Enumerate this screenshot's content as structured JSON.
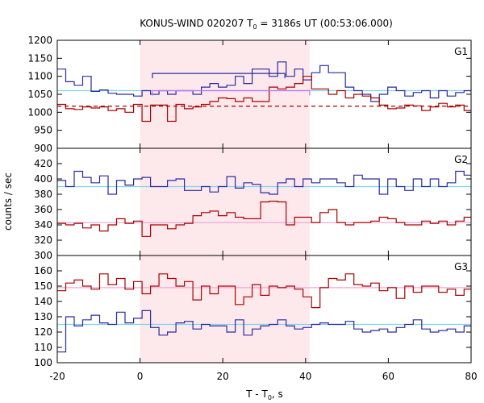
{
  "chart_data": {
    "type": "line",
    "title_parts": [
      "KONUS-WIND 020207 T",
      "0",
      " = 3186s UT (00:53:06.000)"
    ],
    "xlabel_parts": [
      "T - T",
      "0",
      ", s"
    ],
    "ylabel": "counts / sec",
    "xlim": [
      -20,
      80
    ],
    "xticks": [
      -20,
      0,
      20,
      40,
      60,
      80
    ],
    "highlight_region": [
      0,
      41
    ],
    "colors": {
      "red": "#aa0000",
      "blue": "#2a2aa0",
      "cyan": "#7fd3ee",
      "pink": "#f0a8d8",
      "violet": "#c070ff",
      "shade": "#fde8ec"
    },
    "panels": [
      {
        "label": "G1",
        "ylim": [
          900,
          1200
        ],
        "yticks": [
          900,
          950,
          1000,
          1050,
          1100,
          1150,
          1200
        ],
        "step": 2.048,
        "series": [
          {
            "color": "blue",
            "values": [
              1120,
              1085,
              1075,
              1100,
              1058,
              1062,
              1053,
              1050,
              1050,
              1045,
              1060,
              1050,
              1060,
              1050,
              1060,
              1060,
              1050,
              1070,
              1080,
              1070,
              1075,
              1100,
              1080,
              1120,
              1120,
              1100,
              1140,
              1100,
              1120,
              1090,
              1110,
              1130,
              1110,
              1110,
              1070,
              1060,
              1050,
              1030,
              1050,
              1070,
              1060,
              1045,
              1055,
              1060,
              1040,
              1060,
              1045,
              1055,
              1060,
              1050,
              1035,
              1060,
              1040,
              1050,
              1045,
              1060,
              1050,
              1040,
              1060,
              1050,
              1040,
              1050,
              1060,
              1040,
              1050,
              1060,
              1050,
              1040,
              1060,
              1050,
              1060,
              1040,
              1050,
              1060,
              1045,
              1065,
              1050,
              1060,
              1050
            ]
          },
          {
            "color": "red",
            "values": [
              1022,
              1010,
              1008,
              1015,
              1012,
              1015,
              1005,
              1010,
              1000,
              1022,
              975,
              1020,
              1020,
              975,
              1022,
              1010,
              1015,
              1022,
              1030,
              1040,
              1038,
              1030,
              1040,
              1030,
              1030,
              1070,
              1065,
              1070,
              1080,
              1100,
              1065,
              1065,
              1050,
              1060,
              1040,
              1050,
              1045,
              1040,
              1020,
              1010,
              1012,
              1020,
              1018,
              1005,
              1015,
              1025,
              1015,
              1020,
              1005,
              1015,
              1010,
              1000,
              1022,
              1010,
              1010,
              1015,
              1020,
              1005,
              1000,
              1020,
              1010,
              1012,
              1020,
              1015,
              1010,
              1015,
              1020,
              1010,
              1012,
              1018,
              1015,
              1010,
              1010,
              1015,
              1012,
              1015,
              1005,
              1012,
              1010
            ]
          }
        ],
        "hlines": [
          {
            "color": "cyan",
            "value": 1060
          },
          {
            "color": "red",
            "value": 1017,
            "dashed": true
          }
        ],
        "segments": [
          {
            "color": "blue",
            "x1": 3,
            "x2": 35,
            "value": 1108
          },
          {
            "color": "violet",
            "x1": 3,
            "x2": 41,
            "value": 1060
          }
        ]
      },
      {
        "label": "G2",
        "ylim": [
          300,
          440
        ],
        "yticks": [
          300,
          320,
          340,
          360,
          380,
          400,
          420
        ],
        "step": 2.048,
        "series": [
          {
            "color": "blue",
            "values": [
              398,
              390,
              410,
              402,
              395,
              404,
              380,
              398,
              392,
              400,
              402,
              390,
              390,
              398,
              400,
              385,
              385,
              390,
              383,
              390,
              403,
              388,
              395,
              393,
              382,
              380,
              395,
              400,
              390,
              400,
              395,
              400,
              400,
              395,
              390,
              405,
              400,
              400,
              380,
              400,
              390,
              385,
              400,
              390,
              400,
              390,
              395,
              410,
              405,
              410,
              395,
              385,
              380,
              400,
              390,
              370,
              390,
              385,
              400,
              385,
              370,
              395,
              400,
              390,
              400,
              370,
              400,
              380,
              395,
              400,
              385,
              390,
              395,
              380,
              390,
              385,
              395,
              390,
              385
            ]
          },
          {
            "color": "red",
            "values": [
              342,
              340,
              342,
              336,
              340,
              332,
              340,
              348,
              342,
              345,
              325,
              340,
              340,
              335,
              340,
              342,
              352,
              356,
              358,
              352,
              356,
              350,
              348,
              348,
              370,
              371,
              370,
              340,
              350,
              350,
              343,
              356,
              360,
              343,
              340,
              343,
              343,
              345,
              350,
              348,
              343,
              340,
              340,
              345,
              342,
              345,
              340,
              345,
              350,
              355,
              358,
              345,
              355,
              340,
              345,
              350,
              340,
              345,
              340,
              345,
              350,
              340,
              345,
              350,
              355,
              340,
              350,
              345,
              350,
              340,
              345,
              350,
              340,
              345,
              350,
              355,
              350,
              345,
              350
            ]
          }
        ],
        "hlines": [
          {
            "color": "cyan",
            "value": 390
          },
          {
            "color": "pink",
            "value": 343
          }
        ],
        "segments": []
      },
      {
        "label": "G3",
        "ylim": [
          100,
          170
        ],
        "yticks": [
          100,
          110,
          120,
          130,
          140,
          150,
          160
        ],
        "step": 2.048,
        "series": [
          {
            "color": "blue",
            "values": [
              107,
              130,
              124,
              128,
              131,
              126,
              125,
              133,
              126,
              129,
              134,
              123,
              118,
              120,
              126,
              127,
              122,
              125,
              124,
              124,
              120,
              128,
              118,
              122,
              124,
              125,
              128,
              124,
              122,
              123,
              125,
              126,
              125,
              125,
              127,
              122,
              120,
              121,
              122,
              120,
              123,
              125,
              128,
              122,
              120,
              121,
              122,
              120,
              124,
              125,
              127,
              124,
              122,
              126,
              125,
              121,
              127,
              123,
              125,
              123,
              124,
              124,
              126,
              123,
              124,
              122,
              125,
              127,
              126,
              124,
              125,
              127,
              130,
              127,
              128,
              132,
              127,
              126,
              125
            ]
          },
          {
            "color": "red",
            "values": [
              147,
              152,
              154,
              150,
              148,
              158,
              151,
              155,
              148,
              153,
              145,
              150,
              158,
              155,
              150,
              153,
              141,
              150,
              145,
              150,
              150,
              138,
              143,
              151,
              144,
              150,
              149,
              150,
              148,
              143,
              136,
              149,
              155,
              154,
              158,
              151,
              150,
              152,
              147,
              149,
              142,
              150,
              146,
              150,
              150,
              146,
              148,
              144,
              148,
              138,
              144,
              150,
              145,
              150,
              152,
              150,
              153,
              150,
              148,
              152,
              152,
              146,
              150,
              155,
              152,
              150,
              148,
              153,
              148,
              150,
              155,
              150,
              152,
              150,
              148,
              150,
              155,
              158,
              150
            ]
          }
        ],
        "hlines": [
          {
            "color": "cyan",
            "value": 125
          },
          {
            "color": "pink",
            "value": 149
          }
        ],
        "segments": []
      }
    ]
  }
}
